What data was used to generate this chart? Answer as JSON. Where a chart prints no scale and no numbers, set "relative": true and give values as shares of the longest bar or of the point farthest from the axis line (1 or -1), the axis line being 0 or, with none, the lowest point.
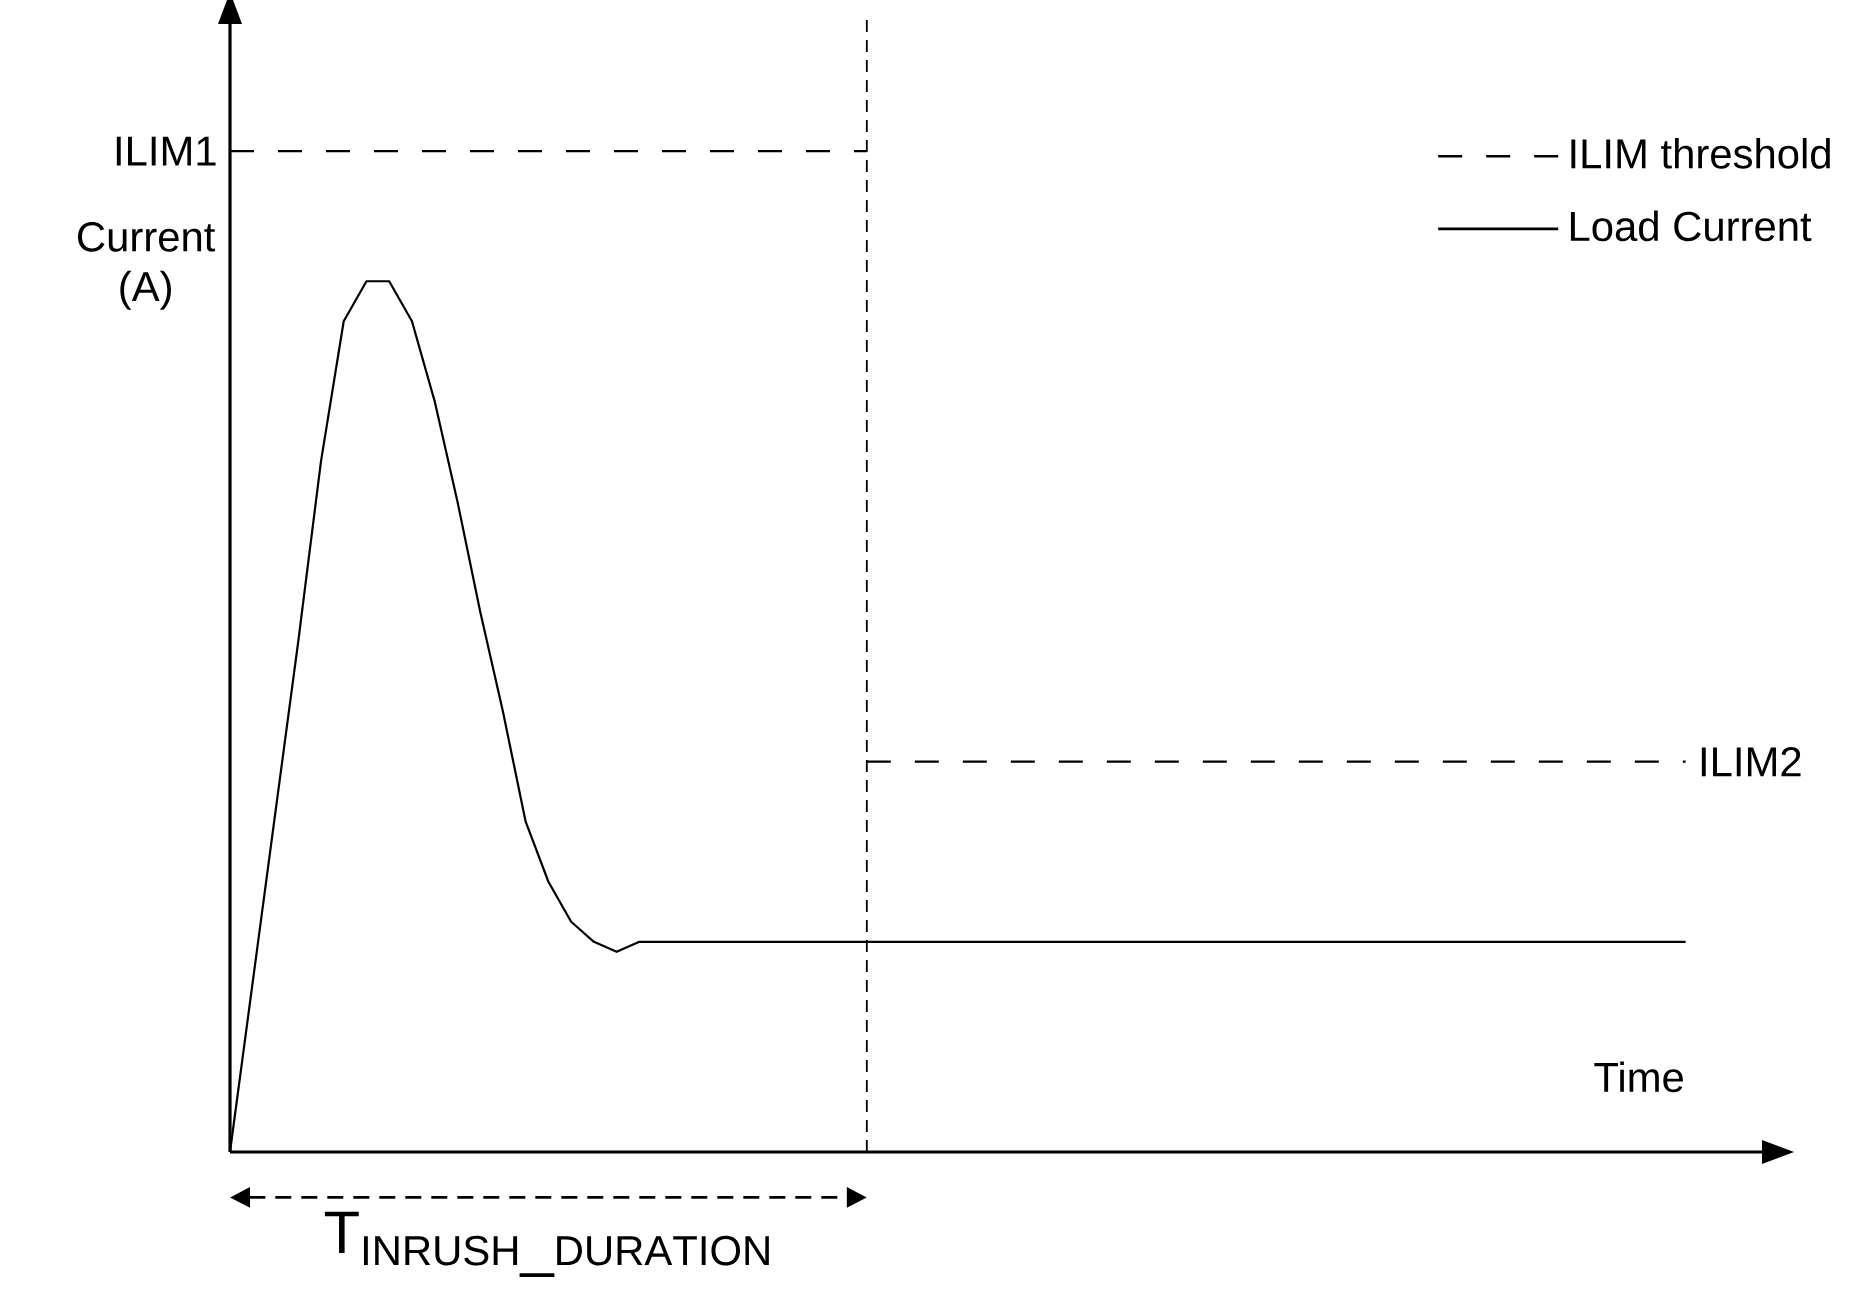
{
  "chart_data": {
    "type": "line",
    "relative": true,
    "xlabel": "Time",
    "ylabel": "Current (A)",
    "legend": "top right",
    "categories": [
      null,
      null,
      null,
      null,
      null,
      null,
      null,
      null,
      null,
      null,
      null,
      null,
      null,
      null,
      null,
      null,
      null,
      null,
      null,
      null,
      null,
      null,
      null,
      null,
      null,
      null,
      null,
      null,
      null,
      null,
      null,
      null,
      null,
      null,
      null,
      null,
      null,
      null,
      null,
      null,
      null,
      null,
      null,
      null,
      null,
      null,
      null,
      null,
      null,
      null,
      null,
      null,
      null,
      null,
      null,
      null,
      null,
      null,
      null,
      null,
      null,
      null,
      null,
      null,
      null
    ],
    "series": [
      {
        "name": "ILIM threshold",
        "color": "#000000",
        "line_style": "dashed",
        "values": [
          1,
          1,
          1,
          1,
          1,
          1,
          1,
          1,
          1,
          1,
          1,
          1,
          1,
          1,
          1,
          1,
          1,
          1,
          1,
          1,
          1,
          1,
          1,
          1,
          1,
          1,
          1,
          1,
          1,
          null,
          null,
          null,
          null,
          null,
          null,
          null,
          null,
          null,
          null,
          null,
          null,
          null,
          null,
          null,
          null,
          null,
          null,
          null,
          null,
          null,
          null,
          null,
          null,
          null,
          null,
          null,
          null,
          null,
          null,
          null,
          null,
          null,
          null,
          null,
          null
        ]
      },
      {
        "color": "#000000",
        "line_style": "dashed",
        "values": [
          null,
          null,
          null,
          null,
          null,
          null,
          null,
          null,
          null,
          null,
          null,
          null,
          null,
          null,
          null,
          null,
          null,
          null,
          null,
          null,
          null,
          null,
          null,
          null,
          null,
          null,
          null,
          null,
          0.39,
          0.39,
          0.39,
          0.39,
          0.39,
          0.39,
          0.39,
          0.39,
          0.39,
          0.39,
          0.39,
          0.39,
          0.39,
          0.39,
          0.39,
          0.39,
          0.39,
          0.39,
          0.39,
          0.39,
          0.39,
          0.39,
          0.39,
          0.39,
          0.39,
          0.39,
          0.39,
          0.39,
          0.39,
          0.39,
          0.39,
          0.39,
          0.39,
          0.39,
          0.39,
          0.39,
          0.39
        ]
      },
      {
        "name": "Load Current",
        "color": "#000000",
        "line_style": "solid",
        "values": [
          0,
          0.17,
          0.34,
          0.51,
          0.69,
          0.83,
          0.87,
          0.87,
          0.83,
          0.75,
          0.65,
          0.54,
          0.44,
          0.33,
          0.27,
          0.23,
          0.21,
          0.2,
          0.21,
          0.21,
          0.21,
          0.21,
          0.21,
          0.21,
          0.21,
          0.21,
          0.21,
          0.21,
          0.21,
          0.21,
          0.21,
          0.21,
          0.21,
          0.21,
          0.21,
          0.21,
          0.21,
          0.21,
          0.21,
          0.21,
          0.21,
          0.21,
          0.21,
          0.21,
          0.21,
          0.21,
          0.21,
          0.21,
          0.21,
          0.21,
          0.21,
          0.21,
          0.21,
          0.21,
          0.21,
          0.21,
          0.21,
          0.21,
          0.21,
          0.21,
          0.21,
          0.21,
          0.21,
          0.21,
          0.21
        ]
      }
    ],
    "annotations": [
      "ILIM1",
      "ILIM2",
      "\\mathrm{T_{INRUSH\\_DURATION}}"
    ]
  }
}
